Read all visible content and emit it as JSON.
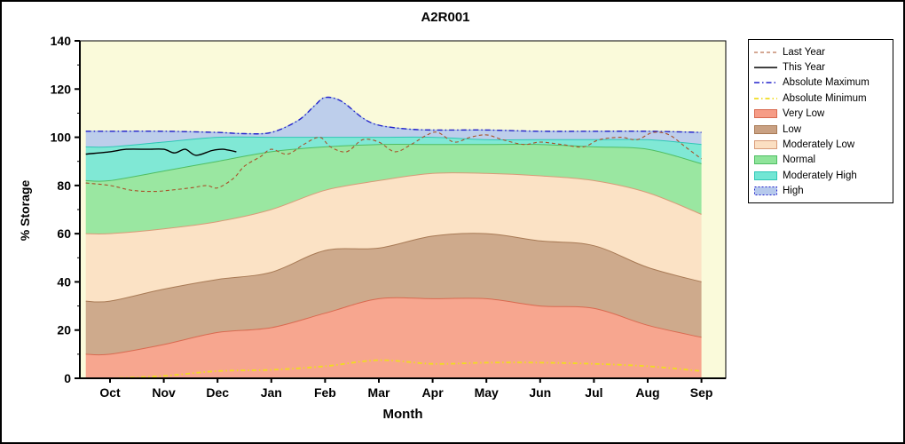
{
  "chart": {
    "title": "A2R001",
    "x_axis_label": "Month",
    "y_axis_label": "% Storage"
  },
  "legend": {
    "items": [
      {
        "id": "last-year",
        "label": "Last Year",
        "type": "line",
        "color": "#a8522a",
        "dash": "4,3",
        "width": 1.1
      },
      {
        "id": "this-year",
        "label": "This Year",
        "type": "line",
        "color": "#000000",
        "dash": "",
        "width": 1.4
      },
      {
        "id": "absolute-maximum",
        "label": "Absolute Maximum",
        "type": "line",
        "color": "#2222cc",
        "dash": "6,3,1.5,3",
        "width": 1.4
      },
      {
        "id": "absolute-minimum",
        "label": "Absolute Minimum",
        "type": "line",
        "color": "#f0dc20",
        "dash": "5,3,1.5,3",
        "width": 1.8
      },
      {
        "id": "very-low",
        "label": "Very Low",
        "type": "fill",
        "color": "#f69c86",
        "edge": "#d96a50"
      },
      {
        "id": "low",
        "label": "Low",
        "type": "fill",
        "color": "#c9a183",
        "edge": "#a87a55"
      },
      {
        "id": "moderately-low",
        "label": "Moderately Low",
        "type": "fill",
        "color": "#fbdfc2",
        "edge": "#d89b78"
      },
      {
        "id": "normal",
        "label": "Normal",
        "type": "fill",
        "color": "#8fe49a",
        "edge": "#4fbe63"
      },
      {
        "id": "moderately-high",
        "label": "Moderately High",
        "type": "fill",
        "color": "#72e6d4",
        "edge": "#2fc7b6"
      },
      {
        "id": "high",
        "label": "High",
        "type": "fill",
        "color": "#b6c9ec",
        "edge": "#2222cc",
        "edge_dash": "2,2"
      }
    ]
  },
  "chart_data": {
    "type": "area",
    "title": "A2R001",
    "xlabel": "Month",
    "ylabel": "% Storage",
    "ylim": [
      0,
      140
    ],
    "y_ticks": [
      0,
      20,
      40,
      60,
      80,
      100,
      120,
      140
    ],
    "x_tick_labels": [
      "Oct",
      "Nov",
      "Dec",
      "Jan",
      "Feb",
      "Mar",
      "Apr",
      "May",
      "Jun",
      "Jul",
      "Aug",
      "Sep"
    ],
    "plot_bg": "#fafada",
    "grid": false,
    "legend_position": "right",
    "bands_base": {
      "x": [
        -0.45,
        11
      ],
      "y": [
        0,
        0
      ]
    },
    "bands": [
      {
        "id": "very-low",
        "name": "Very Low",
        "fill": "#f69c86",
        "edge": "#d96a50",
        "x": [
          -0.45,
          0,
          1,
          2,
          3,
          4,
          5,
          6,
          7,
          8,
          9,
          10,
          11
        ],
        "y": [
          10,
          10,
          14,
          19,
          21,
          27,
          33,
          33,
          33,
          30,
          29,
          22,
          17
        ]
      },
      {
        "id": "low",
        "name": "Low",
        "fill": "#c9a183",
        "edge": "#a87a55",
        "x": [
          -0.45,
          0,
          1,
          2,
          3,
          4,
          5,
          6,
          7,
          8,
          9,
          10,
          11
        ],
        "y": [
          32,
          32,
          37,
          41,
          44,
          53,
          54,
          59,
          60,
          57,
          55,
          46,
          40
        ]
      },
      {
        "id": "moderately-low",
        "name": "Moderately Low",
        "fill": "#fbdfc2",
        "edge": "#d89b78",
        "x": [
          -0.45,
          0,
          1,
          2,
          3,
          4,
          5,
          6,
          7,
          8,
          9,
          10,
          11
        ],
        "y": [
          60,
          60,
          62,
          65,
          70,
          78,
          82,
          85,
          85,
          84,
          82,
          77,
          68
        ]
      },
      {
        "id": "normal",
        "name": "Normal",
        "fill": "#8fe49a",
        "edge": "#4fbe63",
        "x": [
          -0.45,
          0,
          1,
          2,
          3,
          4,
          5,
          6,
          7,
          8,
          9,
          10,
          11
        ],
        "y": [
          82,
          82,
          86,
          90,
          94,
          96,
          97,
          97,
          97,
          97,
          96,
          95,
          89
        ]
      },
      {
        "id": "moderately-high",
        "name": "Moderately High",
        "fill": "#72e6d4",
        "edge": "#2fc7b6",
        "x": [
          -0.45,
          0,
          1,
          2,
          3,
          4,
          5,
          6,
          7,
          8,
          9,
          10,
          11
        ],
        "y": [
          96,
          96,
          98,
          100,
          100,
          100,
          100,
          100,
          99,
          99,
          99,
          99,
          97
        ]
      },
      {
        "id": "high",
        "name": "High",
        "fill": "#b6c9ec",
        "edge": "#9ab4e0",
        "x": [
          -0.45,
          0,
          1,
          2,
          2.5,
          3,
          3.5,
          3.8,
          4,
          4.3,
          4.7,
          5,
          5.5,
          6,
          7,
          8,
          9,
          10,
          11
        ],
        "y": [
          102.5,
          102.5,
          102.5,
          102,
          101.5,
          102,
          107,
          113,
          116.5,
          115,
          108,
          105,
          103.5,
          103,
          103,
          102.5,
          102.5,
          102.5,
          102
        ]
      }
    ],
    "lines": [
      {
        "id": "absolute-minimum",
        "name": "Absolute Minimum",
        "color": "#f0dc20",
        "dash": "5,3,1.5,3",
        "width": 1.8,
        "x": [
          -0.45,
          0,
          1,
          2,
          3,
          4,
          5,
          6,
          7,
          8,
          9,
          10,
          11
        ],
        "y": [
          0,
          0,
          1,
          3,
          3.5,
          5,
          7.5,
          6,
          6.5,
          6.5,
          6,
          5,
          3
        ]
      },
      {
        "id": "absolute-maximum",
        "name": "Absolute Maximum",
        "color": "#2222cc",
        "dash": "6,3,1.5,3",
        "width": 1.4,
        "x": [
          -0.45,
          0,
          1,
          2,
          2.5,
          3,
          3.5,
          3.8,
          4,
          4.3,
          4.7,
          5,
          5.5,
          6,
          7,
          8,
          9,
          10,
          11
        ],
        "y": [
          102.5,
          102.5,
          102.5,
          102,
          101.5,
          102,
          107,
          113,
          116.5,
          115,
          108,
          105,
          103.5,
          103,
          103,
          102.5,
          102.5,
          102.5,
          102
        ]
      },
      {
        "id": "last-year",
        "name": "Last Year",
        "color": "#a8522a",
        "dash": "4,3",
        "width": 1.1,
        "x": [
          -0.45,
          0,
          0.4,
          0.8,
          1.1,
          1.5,
          1.8,
          2,
          2.3,
          2.5,
          2.8,
          3,
          3.3,
          3.6,
          3.9,
          4.1,
          4.4,
          4.7,
          5,
          5.3,
          5.6,
          5.9,
          6.1,
          6.4,
          6.7,
          7,
          7.3,
          7.7,
          8,
          8.4,
          8.8,
          9.1,
          9.5,
          9.8,
          10.1,
          10.4,
          10.7,
          11
        ],
        "y": [
          81,
          80,
          78,
          77.5,
          78,
          79,
          80,
          79,
          83,
          88,
          92,
          95,
          93,
          97,
          100,
          96,
          94,
          99,
          98,
          94,
          97,
          101,
          102,
          98,
          100,
          101,
          99,
          97,
          98,
          97,
          96,
          99,
          100,
          99,
          102,
          101,
          96,
          91
        ]
      },
      {
        "id": "this-year",
        "name": "This Year",
        "color": "#000000",
        "dash": "",
        "width": 1.4,
        "x": [
          -0.45,
          0,
          0.3,
          0.7,
          1,
          1.2,
          1.4,
          1.6,
          1.9,
          2.1,
          2.35
        ],
        "y": [
          93,
          94,
          95,
          95,
          95,
          93.5,
          95,
          92.5,
          94.5,
          95,
          94
        ]
      }
    ]
  }
}
